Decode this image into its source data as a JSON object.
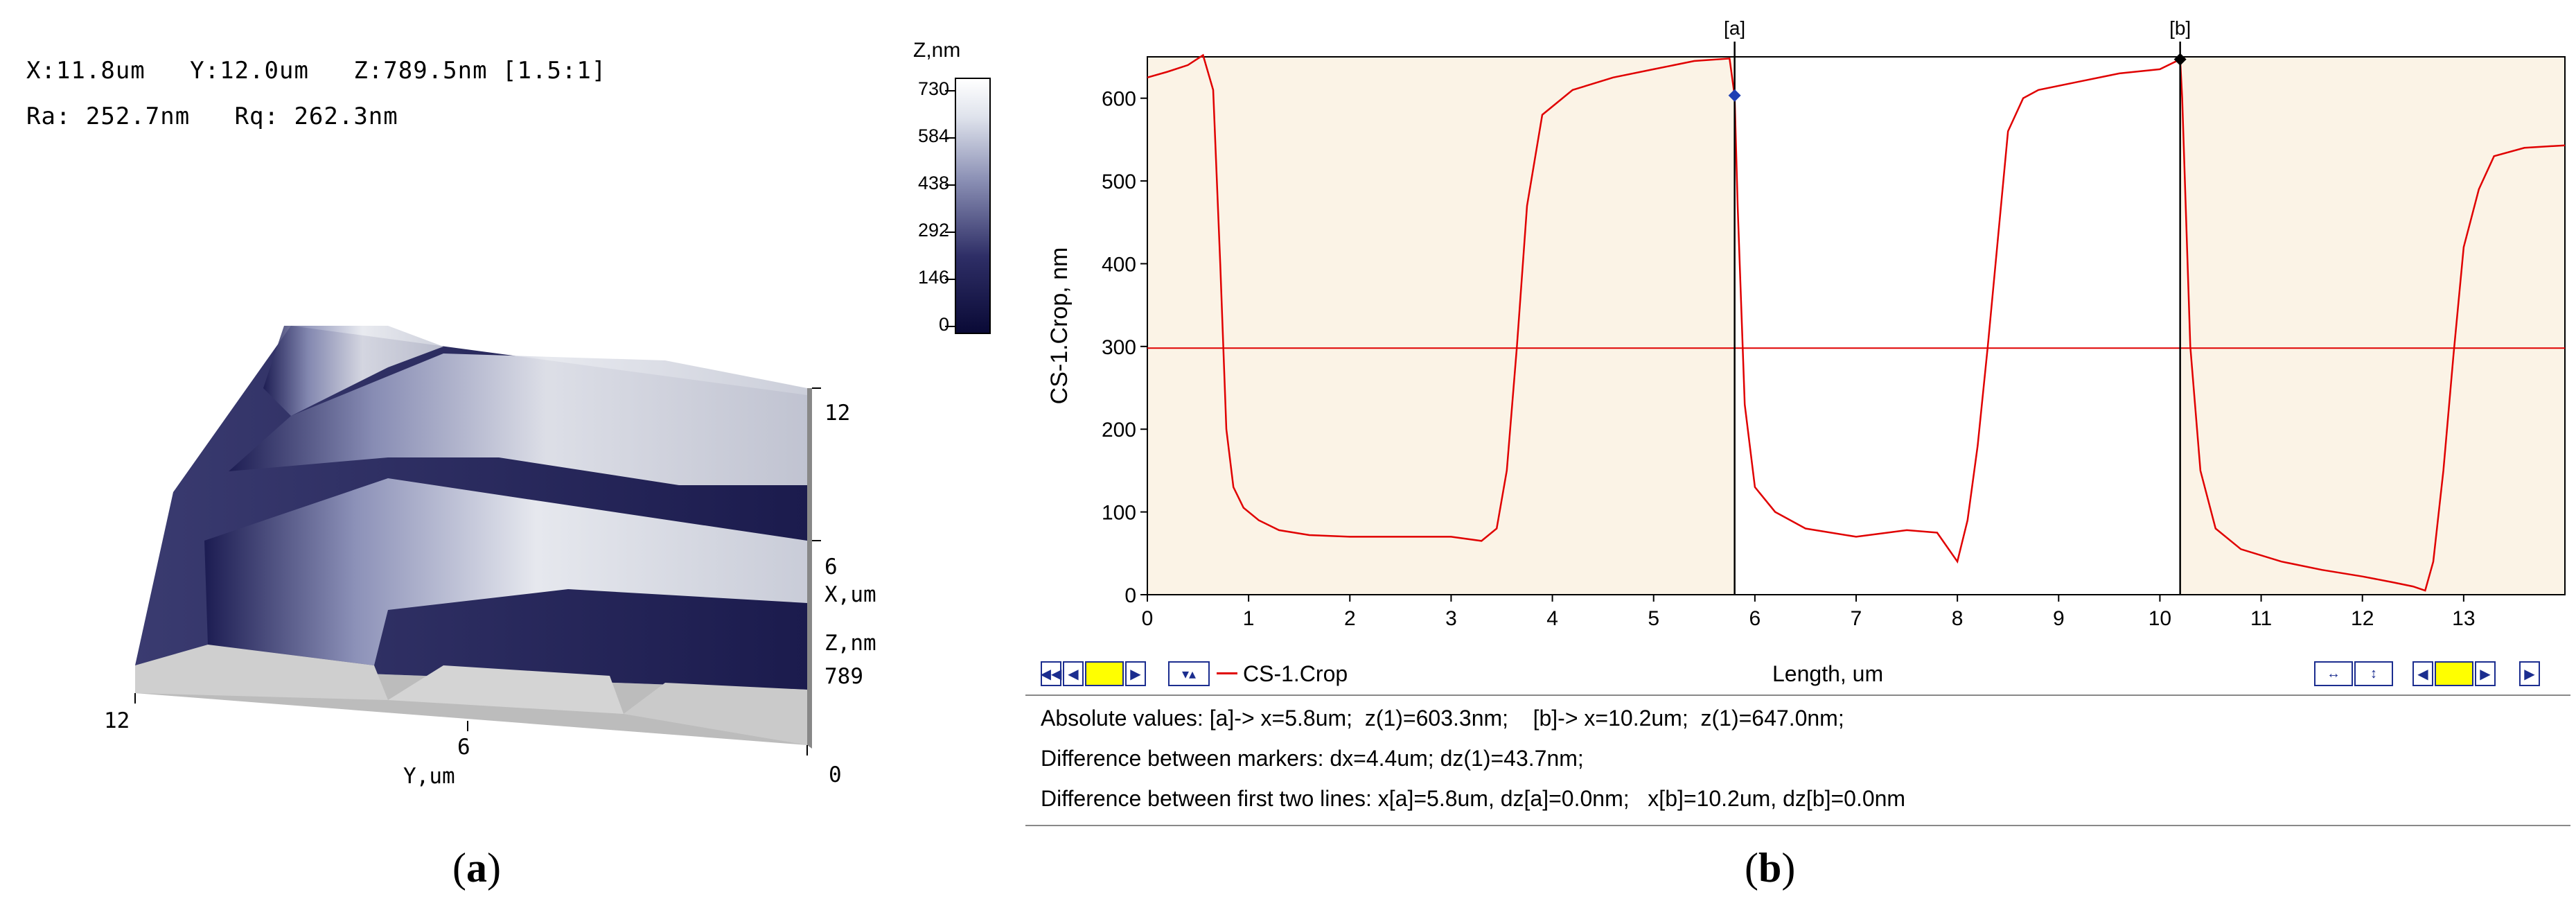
{
  "panel_a": {
    "readout_line1": "X:11.8um   Y:12.0um   Z:789.5nm [1.5:1]",
    "readout_line2": "Ra: 252.7nm   Rq: 262.3nm",
    "colorbar": {
      "title": "Z,nm",
      "ticks": [
        "730",
        "584",
        "438",
        "292",
        "146",
        "0"
      ],
      "colors": [
        "#0a0a36",
        "#2e2e66",
        "#8a8fb4",
        "#dfe3ec",
        "#ffffff"
      ]
    },
    "axes3d": {
      "x_max": "12",
      "x_mid": "6",
      "x_label": "X,um",
      "z_label": "Z,nm",
      "z_max": "789",
      "z_min": "0",
      "y_max": "12",
      "y_mid": "6",
      "y_label": "Y,um"
    },
    "caption": "a"
  },
  "panel_b": {
    "caption": "b",
    "marker_a_label": "[a]",
    "marker_b_label": "[b]",
    "toolbar": {
      "series_legend": "CS-1.Crop",
      "length_label": "Length, um"
    },
    "info": {
      "line1": "Absolute values: [a]-> x=5.8um;  z(1)=603.3nm;    [b]-> x=10.2um;  z(1)=647.0nm;",
      "line2": "Difference between markers: dx=4.4um; dz(1)=43.7nm;",
      "line3": "Difference between first two lines: x[a]=5.8um, dz[a]=0.0nm;   x[b]=10.2um, dz[b]=0.0nm"
    }
  },
  "chart_data": {
    "type": "line",
    "xlabel": "Length, um",
    "ylabel": "CS-1.Crop, nm",
    "xlim": [
      0,
      14
    ],
    "ylim": [
      0,
      650
    ],
    "xticks": [
      0,
      1,
      2,
      3,
      4,
      5,
      6,
      7,
      8,
      9,
      10,
      11,
      12,
      13
    ],
    "yticks": [
      0,
      100,
      200,
      300,
      400,
      500,
      600
    ],
    "grid": false,
    "shaded_regions": [
      [
        0,
        5.8
      ],
      [
        10.2,
        14
      ]
    ],
    "shade_color": "#fbf3e6",
    "line_color": "#e00000",
    "hline": 298,
    "markers": [
      {
        "label": "[a]",
        "x": 5.8,
        "y": 603.3
      },
      {
        "label": "[b]",
        "x": 10.2,
        "y": 647.0
      }
    ],
    "series": [
      {
        "name": "CS-1.Crop",
        "x": [
          0,
          0.2,
          0.4,
          0.55,
          0.65,
          0.72,
          0.78,
          0.85,
          0.95,
          1.1,
          1.3,
          1.6,
          2.0,
          2.5,
          3.0,
          3.3,
          3.45,
          3.55,
          3.65,
          3.75,
          3.9,
          4.2,
          4.6,
          5.0,
          5.4,
          5.75,
          5.8,
          5.83,
          5.9,
          6.0,
          6.2,
          6.5,
          7.0,
          7.5,
          7.8,
          8.0,
          8.1,
          8.2,
          8.3,
          8.4,
          8.5,
          8.65,
          8.8,
          9.2,
          9.6,
          10.0,
          10.2,
          10.22,
          10.3,
          10.4,
          10.55,
          10.8,
          11.2,
          11.6,
          12.0,
          12.3,
          12.5,
          12.62,
          12.7,
          12.8,
          12.9,
          13.0,
          13.15,
          13.3,
          13.6,
          14.0
        ],
        "values": [
          625,
          632,
          640,
          652,
          610,
          400,
          200,
          130,
          105,
          90,
          78,
          72,
          70,
          70,
          70,
          65,
          80,
          150,
          300,
          470,
          580,
          610,
          625,
          635,
          645,
          648,
          603,
          470,
          230,
          130,
          100,
          80,
          70,
          78,
          75,
          40,
          90,
          180,
          300,
          430,
          560,
          600,
          610,
          620,
          630,
          635,
          647,
          600,
          300,
          150,
          80,
          55,
          40,
          30,
          22,
          15,
          10,
          5,
          40,
          150,
          290,
          420,
          490,
          530,
          540,
          543
        ]
      }
    ]
  }
}
